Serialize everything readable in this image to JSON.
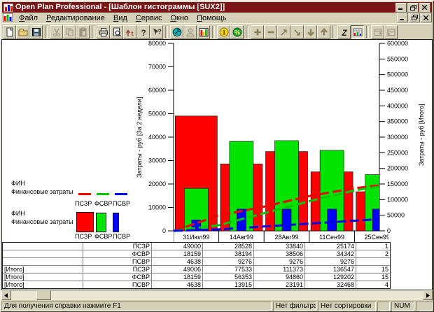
{
  "window": {
    "title": "Open Plan Professional - [Шаблон гистограммы [SUX2]]"
  },
  "menu": {
    "items": [
      "Файл",
      "Редактирование",
      "Вид",
      "Сервис",
      "Окно",
      "Помощь"
    ]
  },
  "toolbar": {
    "buttons": [
      {
        "name": "new"
      },
      {
        "name": "open"
      },
      {
        "name": "save"
      },
      {
        "sep": true
      },
      {
        "name": "cut",
        "disabled": true
      },
      {
        "name": "copy",
        "disabled": true
      },
      {
        "name": "paste",
        "disabled": true
      },
      {
        "sep": true
      },
      {
        "name": "print"
      },
      {
        "name": "print-preview"
      },
      {
        "name": "update",
        "glyph": "t"
      },
      {
        "name": "help",
        "glyph": "?"
      },
      {
        "name": "context-help",
        "glyph": "?"
      },
      {
        "sep": true
      },
      {
        "name": "time-clock"
      },
      {
        "name": "resource",
        "disabled": true
      },
      {
        "name": "histogram"
      },
      {
        "sep": true
      },
      {
        "name": "currency",
        "glyph": "1"
      },
      {
        "name": "percent",
        "glyph": "%"
      },
      {
        "sep": true
      },
      {
        "name": "plus"
      },
      {
        "name": "minus"
      },
      {
        "name": "arrow-ne"
      },
      {
        "name": "arrow-se"
      },
      {
        "name": "arrow-down"
      },
      {
        "name": "arrow-up"
      },
      {
        "sep": true
      },
      {
        "name": "zoom-z",
        "glyph": "Z"
      },
      {
        "name": "histogram-view",
        "pressed": true
      },
      {
        "sep": true
      },
      {
        "name": "window-cascade",
        "disabled": true
      },
      {
        "name": "window-restore",
        "disabled": true
      }
    ]
  },
  "chart_data": {
    "type": "bar+line",
    "categories": [
      "31Июл99",
      "14Авг99",
      "28Авг99",
      "11Сен99",
      "25Сен99"
    ],
    "bar_series": [
      {
        "name": "ПСЗР",
        "color": "#ff0000",
        "values": [
          49000,
          28528,
          33840,
          25174,
          16700
        ]
      },
      {
        "name": "ФСВР",
        "color": "#00e400",
        "values": [
          18159,
          38194,
          38506,
          34342,
          24000
        ]
      },
      {
        "name": "ПСВР",
        "color": "#0000ff",
        "values": [
          4638,
          9276,
          9276,
          9276,
          9276
        ]
      }
    ],
    "line_series": [
      {
        "name": "ПСЗР",
        "color": "#ee0000",
        "values": [
          49006,
          77533,
          111373,
          136547,
          153247
        ]
      },
      {
        "name": "ФСВР",
        "color": "#00c800",
        "values": [
          18159,
          56353,
          94860,
          129202,
          153202
        ]
      },
      {
        "name": "ПСВР",
        "color": "#0000e6",
        "values": [
          4638,
          13915,
          23191,
          32468,
          41744
        ]
      }
    ],
    "left_axis": {
      "label": "Затраты - руб [За 2 недели]",
      "min": 0,
      "max": 80000,
      "step": 10000
    },
    "right_axis": {
      "label": "Затраты - руб [Итого]",
      "min": 0,
      "max": 600000,
      "step": 50000
    }
  },
  "legend": {
    "lines": {
      "group": "ФИН",
      "label": "Финансовые затраты",
      "items": [
        "ПСЗР",
        "ФСВР",
        "ПСВР"
      ],
      "colors": [
        "#ff0000",
        "#00c800",
        "#0000ff"
      ]
    },
    "bars": {
      "group": "ФИН",
      "label": "Финансовые затраты",
      "items": [
        "ПСЗР",
        "ФСВР",
        "ПСВР"
      ],
      "colors": [
        "#ff0000",
        "#00e400",
        "#0000ff"
      ]
    }
  },
  "table": {
    "rows": [
      {
        "group": "",
        "resource": "ПСЗР",
        "values": [
          "49000",
          "28528",
          "33840",
          "25174",
          "1"
        ]
      },
      {
        "group": "",
        "resource": "ФСВР",
        "values": [
          "18159",
          "38194",
          "38506",
          "34342",
          "2"
        ]
      },
      {
        "group": "",
        "resource": "ПСВР",
        "values": [
          "4638",
          "9276",
          "9276",
          "9276",
          ""
        ]
      },
      {
        "group": "[Итого]",
        "resource": "ПСЗР",
        "values": [
          "49006",
          "77533",
          "111373",
          "136547",
          "15"
        ]
      },
      {
        "group": "[Итого]",
        "resource": "ФСВР",
        "values": [
          "18159",
          "56353",
          "94860",
          "129202",
          "15"
        ]
      },
      {
        "group": "[Итого]",
        "resource": "ПСВР",
        "values": [
          "4638",
          "13915",
          "23191",
          "32468",
          "4"
        ]
      }
    ]
  },
  "status": {
    "help": "Для получения справки нажмите F1",
    "filter": "Нет фильтра",
    "sort": "Нет сортировки",
    "num": "NUM"
  },
  "colors": {
    "titlebar": "#7b1416",
    "chrome": "#d5d1b9",
    "bar_red": "#ff0000",
    "bar_green": "#00e400",
    "bar_blue": "#0000ff"
  }
}
